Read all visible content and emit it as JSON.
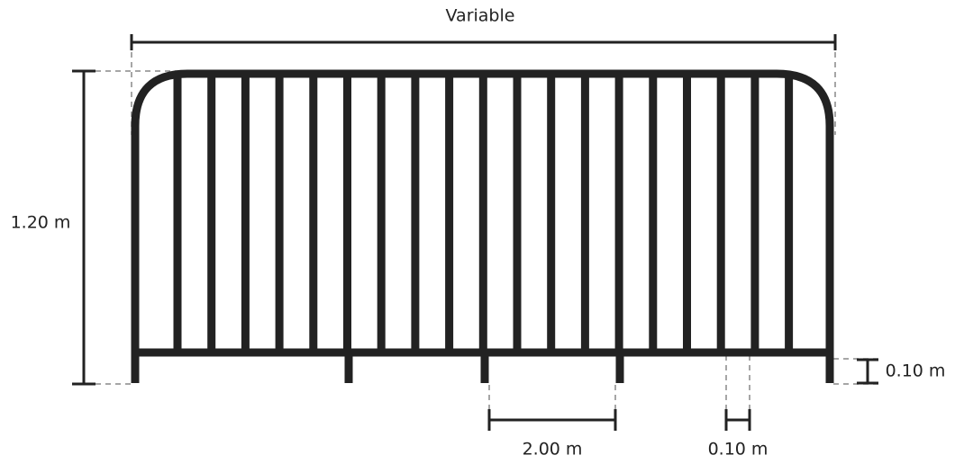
{
  "dimensions": {
    "width": "Variable",
    "height": "1.20 m",
    "foot_height": "0.10 m",
    "foot_spacing": "2.00 m",
    "bar_spacing": "0.10 m"
  }
}
